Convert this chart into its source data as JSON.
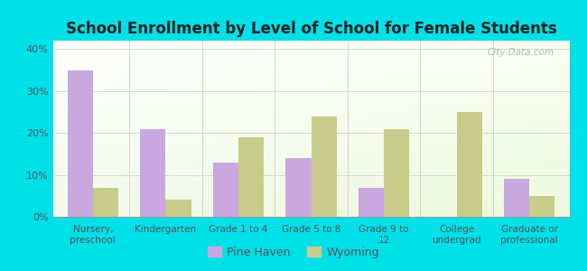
{
  "title": "School Enrollment by Level of School for Female Students",
  "categories": [
    "Nursery,\npreschool",
    "Kindergarten",
    "Grade 1 to 4",
    "Grade 5 to 8",
    "Grade 9 to\n12",
    "College\nundergrad",
    "Graduate or\nprofessional"
  ],
  "pine_haven": [
    35,
    21,
    13,
    14,
    7,
    0,
    9
  ],
  "wyoming": [
    7,
    4,
    19,
    24,
    21,
    25,
    5
  ],
  "pine_haven_color": "#c9a8e0",
  "wyoming_color": "#c8cc8a",
  "outer_bg": "#00e0e8",
  "yticks": [
    0,
    10,
    20,
    30,
    40
  ],
  "ytick_labels": [
    "0%",
    "10%",
    "20%",
    "30%",
    "40%"
  ],
  "ylim": [
    0,
    42
  ],
  "bar_width": 0.35,
  "title_fontsize": 12,
  "watermark": "City-Data.com",
  "legend_pine": "Pine Haven",
  "legend_wy": "Wyoming",
  "grad_top_color": "#f0faf0",
  "grad_bottom_color": "#e8f7e8"
}
